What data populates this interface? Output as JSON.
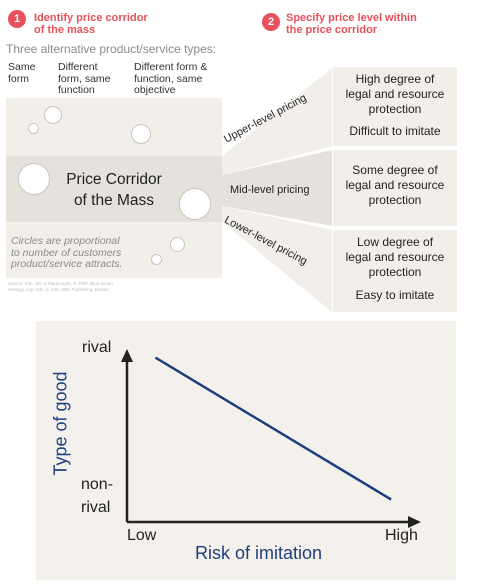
{
  "step1": {
    "number": "1",
    "title_line1": "Identify price corridor",
    "title_line2": "of the mass"
  },
  "step2": {
    "number": "2",
    "title_line1": "Specify price level within",
    "title_line2": "the price corridor"
  },
  "types_heading": "Three alternative product/service types:",
  "columns": [
    {
      "line1": "Same",
      "line2": "form",
      "line3": ""
    },
    {
      "line1": "Different",
      "line2": "form, same",
      "line3": "function"
    },
    {
      "line1": "Different form &",
      "line2": "function, same",
      "line3": "objective"
    }
  ],
  "corridor_label": {
    "line1": "Price Corridor",
    "line2": "of the Mass"
  },
  "note": {
    "line1": "Circles are proportional",
    "line2": "to number of customers",
    "line3": "product/service attracts."
  },
  "source": {
    "line1": "Source: Kim, WC & Mauborgne, R 2005, Blue ocean",
    "line2": "strategy, exp. edn, p. 128, HBS Publishing, Boston."
  },
  "pricing_labels": {
    "upper": "Upper-level pricing",
    "mid": "Mid-level pricing",
    "lower": "Lower-level pricing"
  },
  "levels": {
    "upper": {
      "line1": "High degree of",
      "line2": "legal and resource",
      "line3": "protection",
      "extra": "Difficult to imitate"
    },
    "mid": {
      "line1": "Some degree of",
      "line2": "legal and resource",
      "line3": "protection"
    },
    "lower": {
      "line1": "Low degree of",
      "line2": "legal and resource",
      "line3": "protection",
      "extra": "Easy to imitate"
    }
  },
  "colors": {
    "accent": "#e8505b",
    "axis": "#1e3f7e",
    "panel": "#f2efeb"
  },
  "chart_data": {
    "type": "line",
    "xlabel": "Risk of imitation",
    "ylabel": "Type of good",
    "x_ticks": [
      "Low",
      "High"
    ],
    "y_ticks": {
      "top": "rival",
      "bottom_line1": "non-",
      "bottom_line2": "rival"
    },
    "x": [
      0.1,
      0.93
    ],
    "y": [
      0.95,
      0.13
    ],
    "xlim": [
      0,
      1
    ],
    "ylim": [
      0,
      1
    ],
    "grid": false
  }
}
